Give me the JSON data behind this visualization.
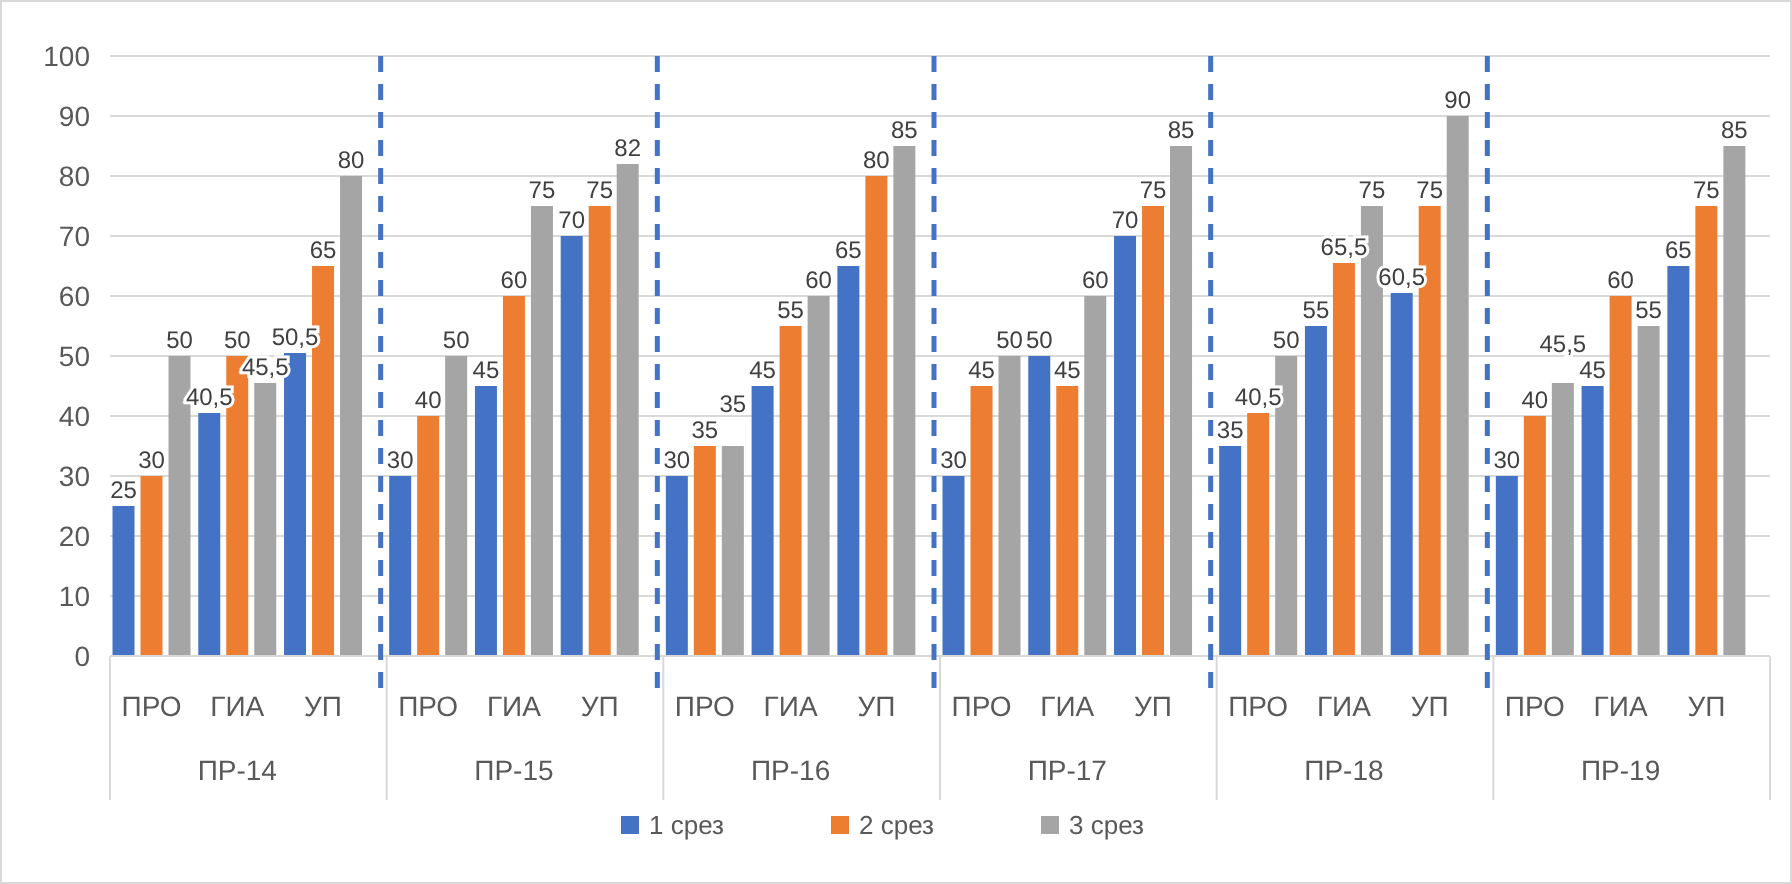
{
  "chart_data": {
    "type": "bar",
    "categories": [
      "ПРО",
      "ГИА",
      "УП",
      "ПРО",
      "ГИА",
      "УП",
      "ПРО",
      "ГИА",
      "УП",
      "ПРО",
      "ГИА",
      "УП",
      "ПРО",
      "ГИА",
      "УП",
      "ПРО",
      "ГИА",
      "УП"
    ],
    "annotations": [
      "ПР-14",
      "ПР-15",
      "ПР-16",
      "ПР-17",
      "ПР-18",
      "ПР-19"
    ],
    "series": [
      {
        "name": "1 срез",
        "color": "#4472c4",
        "values": [
          25,
          40.5,
          50.5,
          30,
          45,
          70,
          30,
          45,
          65,
          30,
          50,
          70,
          35,
          55,
          60.5,
          30,
          45,
          65
        ],
        "value_labels": [
          "25",
          "40,5",
          "50,5",
          "30",
          "45",
          "70",
          "30",
          "45",
          "65",
          "30",
          "50",
          "70",
          "35",
          "55",
          "60,5",
          "30",
          "45",
          "65"
        ]
      },
      {
        "name": "2 срез",
        "color": "#ed7d31",
        "values": [
          30,
          50,
          65,
          40,
          60,
          75,
          35,
          55,
          80,
          45,
          45,
          75,
          40.5,
          65.5,
          75,
          40,
          60,
          75
        ],
        "value_labels": [
          "30",
          "50",
          "65",
          "40",
          "60",
          "75",
          "35",
          "55",
          "80",
          "45",
          "45",
          "75",
          "40,5",
          "65,5",
          "75",
          "40",
          "60",
          "75"
        ]
      },
      {
        "name": "3 срез",
        "color": "#a5a5a5",
        "values": [
          50,
          45.5,
          80,
          50,
          75,
          82,
          35,
          60,
          85,
          50,
          60,
          85,
          50,
          75,
          90,
          45.5,
          55,
          85
        ],
        "value_labels": [
          "50",
          "45,5",
          "80",
          "50",
          "75",
          "82",
          "35",
          "60",
          "85",
          "50",
          "60",
          "85",
          "50",
          "75",
          "90",
          "45,5",
          "55",
          "85"
        ]
      }
    ],
    "ylim": [
      0,
      100
    ],
    "yticks": [
      0,
      10,
      20,
      30,
      40,
      50,
      60,
      70,
      80,
      90,
      100
    ],
    "grid": "y",
    "legend": "bottom"
  }
}
